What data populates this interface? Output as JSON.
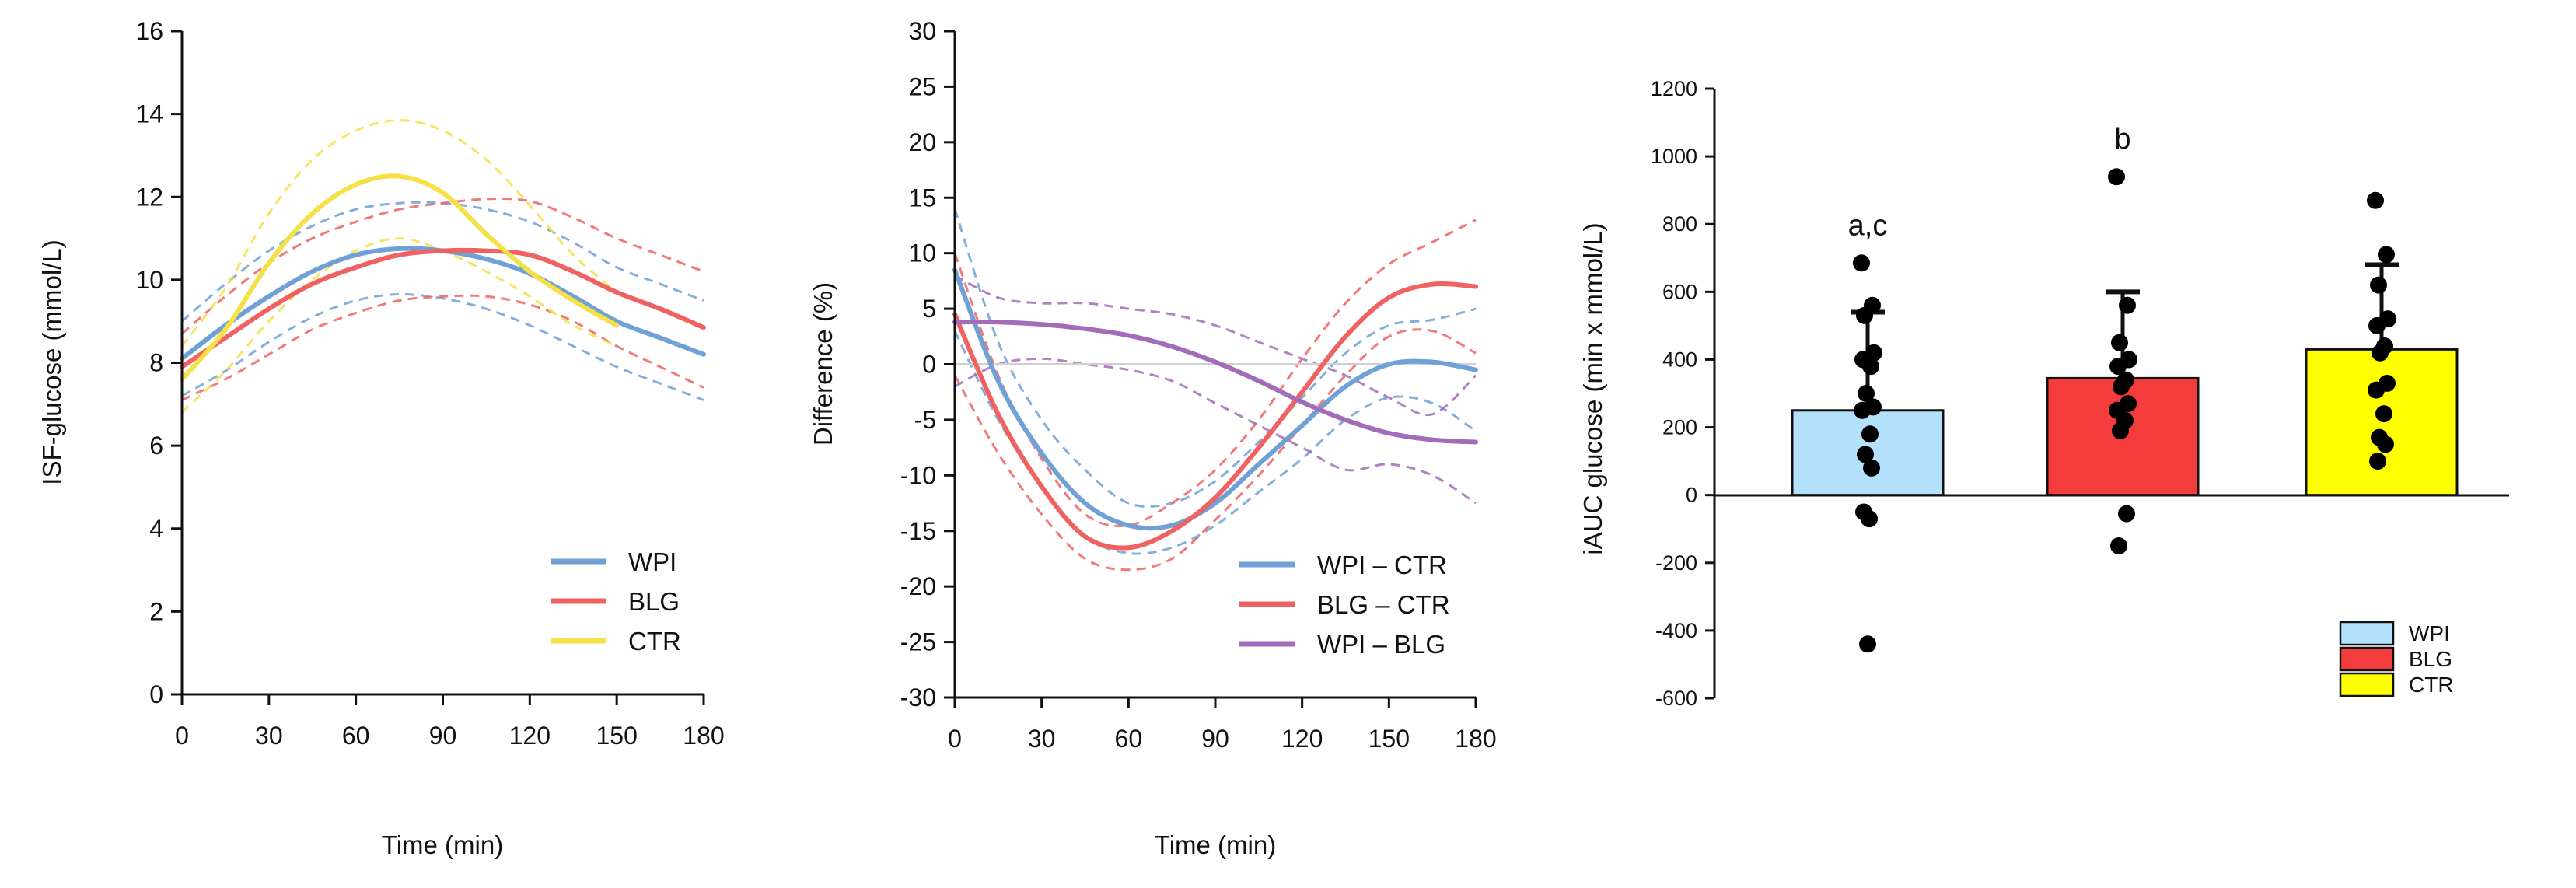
{
  "chart_data": [
    {
      "type": "line",
      "ylabel": "ISF-glucose (mmol/L)",
      "xlabel": "Time (min)",
      "xlim": [
        0,
        180
      ],
      "ylim": [
        0,
        16
      ],
      "xticks": [
        0,
        30,
        60,
        90,
        120,
        150,
        180
      ],
      "yticks": [
        0,
        2,
        4,
        6,
        8,
        10,
        12,
        14,
        16
      ],
      "legend_position": "bottom-right",
      "x": [
        0,
        15,
        30,
        45,
        60,
        75,
        90,
        105,
        120,
        135,
        150,
        165,
        180
      ],
      "series": [
        {
          "name": "WPI",
          "color": "#6fa0d6",
          "values": [
            8.1,
            8.9,
            9.6,
            10.2,
            10.6,
            10.75,
            10.7,
            10.5,
            10.15,
            9.6,
            9.0,
            8.6,
            8.2
          ],
          "lower": [
            7.2,
            7.8,
            8.5,
            9.1,
            9.5,
            9.65,
            9.55,
            9.3,
            8.9,
            8.4,
            7.9,
            7.5,
            7.1
          ],
          "upper": [
            9.0,
            9.9,
            10.7,
            11.3,
            11.7,
            11.85,
            11.85,
            11.7,
            11.4,
            10.9,
            10.3,
            9.9,
            9.5
          ]
        },
        {
          "name": "BLG",
          "color": "#f06262",
          "values": [
            7.9,
            8.6,
            9.3,
            9.9,
            10.3,
            10.6,
            10.7,
            10.7,
            10.6,
            10.2,
            9.7,
            9.3,
            8.85
          ],
          "lower": [
            7.1,
            7.6,
            8.2,
            8.8,
            9.2,
            9.5,
            9.6,
            9.6,
            9.4,
            9.0,
            8.4,
            7.9,
            7.4
          ],
          "upper": [
            8.7,
            9.6,
            10.4,
            11.0,
            11.4,
            11.7,
            11.85,
            11.95,
            11.9,
            11.5,
            11.0,
            10.6,
            10.2
          ]
        },
        {
          "name": "CTR",
          "color": "#f5e046",
          "values": [
            7.6,
            8.8,
            10.4,
            11.6,
            12.3,
            12.5,
            12.1,
            11.1,
            10.2,
            9.5,
            8.9,
            null,
            null
          ],
          "lower": [
            6.8,
            7.8,
            9.0,
            10.0,
            10.7,
            11.0,
            10.7,
            10.2,
            9.6,
            8.9,
            8.4,
            null,
            null
          ],
          "upper": [
            8.4,
            9.8,
            11.6,
            12.9,
            13.6,
            13.85,
            13.6,
            12.9,
            11.8,
            10.6,
            9.7,
            null,
            null
          ]
        }
      ]
    },
    {
      "type": "line",
      "ylabel": "Difference (%)",
      "xlabel": "Time (min)",
      "xlim": [
        0,
        180
      ],
      "ylim": [
        -30,
        30
      ],
      "xticks": [
        0,
        30,
        60,
        90,
        120,
        150,
        180
      ],
      "yticks": [
        -30,
        -25,
        -20,
        -15,
        -10,
        -5,
        0,
        5,
        10,
        15,
        20,
        25,
        30
      ],
      "reference_line": 0,
      "legend_position": "bottom-right",
      "x": [
        0,
        15,
        30,
        45,
        60,
        75,
        90,
        105,
        120,
        135,
        150,
        165,
        180
      ],
      "series": [
        {
          "name": "WPI – CTR",
          "color": "#6fa0d6",
          "values": [
            8.5,
            -1.5,
            -8.0,
            -12.5,
            -14.5,
            -14.5,
            -12.5,
            -9.0,
            -5.5,
            -2.0,
            0.0,
            0.2,
            -0.5
          ],
          "lower": [
            3.0,
            -5.0,
            -11.0,
            -15.5,
            -17.0,
            -16.5,
            -14.5,
            -11.5,
            -8.5,
            -5.0,
            -3.0,
            -3.5,
            -6.0
          ],
          "upper": [
            14.0,
            2.0,
            -5.0,
            -9.5,
            -12.5,
            -12.5,
            -10.5,
            -7.0,
            -3.0,
            1.0,
            3.5,
            4.0,
            5.0
          ]
        },
        {
          "name": "BLG – CTR",
          "color": "#f06262",
          "values": [
            4.5,
            -4.5,
            -11.0,
            -15.5,
            -16.5,
            -15.0,
            -12.0,
            -7.5,
            -2.5,
            2.5,
            6.0,
            7.2,
            7.0
          ],
          "lower": [
            -1.0,
            -8.0,
            -13.5,
            -17.5,
            -18.5,
            -17.5,
            -14.0,
            -10.0,
            -5.5,
            -1.0,
            2.5,
            3.0,
            1.0
          ],
          "upper": [
            10.0,
            -1.0,
            -8.5,
            -13.5,
            -14.5,
            -12.5,
            -9.5,
            -5.0,
            0.5,
            5.5,
            9.0,
            11.0,
            13.0
          ]
        },
        {
          "name": "WPI – BLG",
          "color": "#a26cb8",
          "values": [
            3.8,
            3.8,
            3.6,
            3.2,
            2.6,
            1.6,
            0.2,
            -1.5,
            -3.4,
            -5.0,
            -6.2,
            -6.8,
            -7.0
          ],
          "lower": [
            -2.0,
            0.0,
            0.5,
            0.0,
            -0.5,
            -1.5,
            -3.5,
            -5.5,
            -7.5,
            -9.5,
            -9.0,
            -10.0,
            -12.5
          ],
          "upper": [
            8.0,
            6.0,
            5.5,
            5.5,
            5.0,
            4.5,
            3.5,
            2.0,
            0.5,
            -1.0,
            -3.0,
            -4.5,
            -1.0
          ]
        }
      ]
    },
    {
      "type": "bar",
      "ylabel": "iAUC glucose (min x mmol/L)",
      "ylim": [
        -600,
        1200
      ],
      "yticks": [
        -600,
        -400,
        -200,
        0,
        200,
        400,
        600,
        800,
        1000,
        1200
      ],
      "legend_position": "bottom-right",
      "categories": [
        "WPI",
        "BLG",
        "CTR"
      ],
      "values": [
        250,
        345,
        430
      ],
      "errors_upper": [
        540,
        600,
        680
      ],
      "colors": [
        "#b3e0fb",
        "#f43c3c",
        "#ffff00"
      ],
      "annotations": [
        "a,c",
        "b",
        ""
      ],
      "points": [
        [
          685,
          560,
          530,
          420,
          400,
          380,
          300,
          260,
          250,
          180,
          120,
          80,
          -50,
          -70,
          -440
        ],
        [
          940,
          560,
          450,
          400,
          380,
          340,
          320,
          270,
          250,
          220,
          190,
          -55,
          -150
        ],
        [
          870,
          710,
          620,
          520,
          500,
          440,
          420,
          330,
          310,
          240,
          170,
          150,
          100
        ]
      ]
    }
  ]
}
